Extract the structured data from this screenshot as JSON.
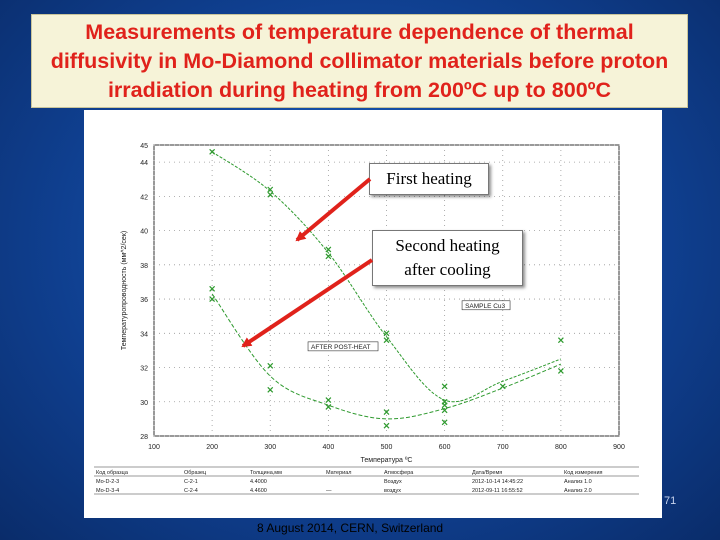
{
  "slide": {
    "title": "Measurements of temperature dependence of thermal diffusivity in Mo-Diamond collimator materials before proton irradiation during heating from 200ºC up to 800ºC",
    "footer": "8 August 2014, CERN, Switzerland",
    "page_number": "71",
    "callout_first": "First heating",
    "callout_second_line1": "Second heating",
    "callout_second_line2": "after cooling",
    "colors": {
      "title_text": "#e0221b",
      "title_bg": "#f6f3d8",
      "curve": "#2f9a2f",
      "arrow": "#e0221b",
      "slide_bg": "#1552a8"
    }
  },
  "chart_data": {
    "type": "line",
    "ylabel": "Температуропроводность (мм^2/сек)",
    "xlabel": "Температура ºС",
    "xlim": [
      100,
      900
    ],
    "ylim": [
      28,
      45
    ],
    "x_ticks": [
      "100",
      "200",
      "300",
      "400",
      "500",
      "600",
      "700",
      "800",
      "900"
    ],
    "y_ticks": [
      "28",
      "30",
      "32",
      "34",
      "36",
      "38",
      "40",
      "42",
      "44",
      "45"
    ],
    "grid": true,
    "labels": [
      "SAMPLE Cu3",
      "AFTER POST-HEAT"
    ],
    "series": [
      {
        "x": [
          200,
          300,
          400,
          500,
          600,
          700,
          800
        ],
        "y": [
          44.6,
          42.3,
          38.7,
          33.8,
          30.1,
          31.2,
          32.5
        ],
        "points_x": [
          200,
          300,
          300,
          400,
          400,
          500,
          500,
          600,
          600,
          600,
          700,
          800,
          800
        ],
        "points_y": [
          44.6,
          42.4,
          42.1,
          38.9,
          38.5,
          34.0,
          33.6,
          30.9,
          30.0,
          29.5,
          30.9,
          33.6,
          31.8
        ]
      },
      {
        "x": [
          200,
          300,
          400,
          500,
          600,
          700,
          800
        ],
        "y": [
          36.3,
          31.5,
          29.8,
          29.0,
          29.6,
          30.8,
          32.2
        ],
        "points_x": [
          200,
          200,
          300,
          300,
          400,
          400,
          500,
          500,
          600,
          600
        ],
        "points_y": [
          36.6,
          36.0,
          32.1,
          30.7,
          30.1,
          29.7,
          29.4,
          28.6,
          29.8,
          28.8
        ]
      }
    ],
    "table": {
      "headers": [
        "Код образца",
        "Образец",
        "Толщина,мм",
        "Материал",
        "Атмосфера",
        "Дата/Время",
        "Код измерения"
      ],
      "rows": [
        [
          "Mo-D-2-3",
          "C-2-1",
          "4.4000",
          "",
          "Воздух",
          "2012-10-14 14:45:22",
          "Анализ 1.0"
        ],
        [
          "Mo-D-3-4",
          "C-2-4",
          "4.4600",
          "—",
          "воздух",
          "2012-09-11 16:55:52",
          "Анализ 2.0"
        ]
      ]
    }
  }
}
